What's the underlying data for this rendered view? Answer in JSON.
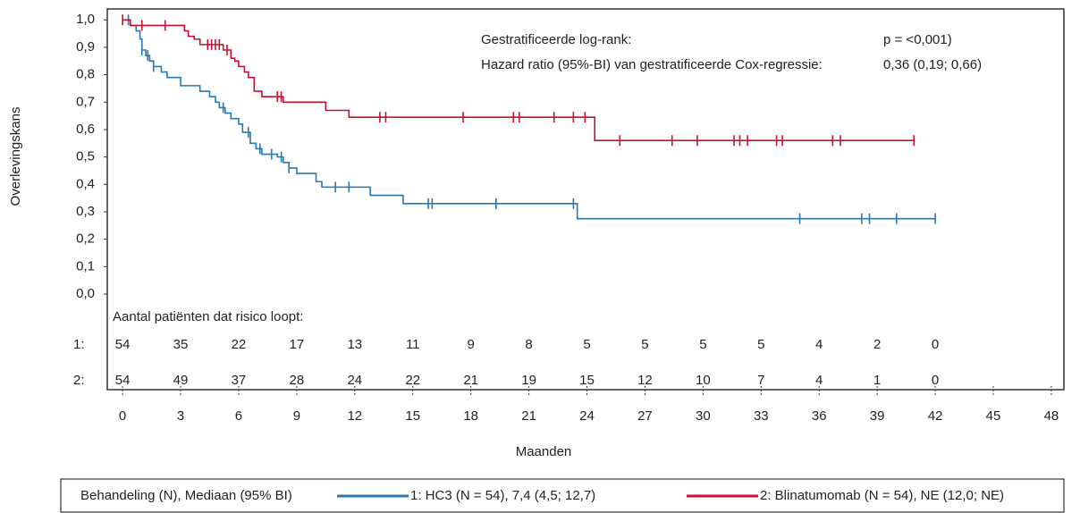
{
  "chart_data": {
    "type": "step",
    "y_label": "Overlevingskans",
    "x_label": "Maanden",
    "xlim": [
      -0.79,
      48.65
    ],
    "ylim": [
      0,
      1.04
    ],
    "xticks": [
      0,
      3,
      6,
      9,
      12,
      15,
      18,
      21,
      24,
      27,
      30,
      33,
      36,
      39,
      42,
      45,
      48
    ],
    "yticks": [
      {
        "value": 0,
        "label": "0,0"
      },
      {
        "value": 0.1,
        "label": "0,1"
      },
      {
        "value": 0.2,
        "label": "0,2"
      },
      {
        "value": 0.3,
        "label": "0,3"
      },
      {
        "value": 0.4,
        "label": "0,4"
      },
      {
        "value": 0.5,
        "label": "0,5"
      },
      {
        "value": 0.6,
        "label": "0,6"
      },
      {
        "value": 0.7,
        "label": "0,7"
      },
      {
        "value": 0.8,
        "label": "0,8"
      },
      {
        "value": 0.9,
        "label": "0,9"
      },
      {
        "value": 1,
        "label": "1,0"
      }
    ],
    "annotations": [
      {
        "text": "Gestratificeerde log-rank:",
        "value_text": "p = <0,001)"
      },
      {
        "text": "Hazard ratio (95%-BI) van gestratificeerde Cox-regressie:",
        "value_text": "0,36 (0,19; 0,66)"
      }
    ],
    "legend_title": "Behandeling (N), Mediaan (95% BI)",
    "series": [
      {
        "name": "1: HC3 (N = 54), 7,4 (4,5; 12,7)",
        "color": "#2a78b0",
        "x": [
          0,
          0.4,
          0.7,
          0.9,
          1.0,
          1.2,
          1.4,
          1.6,
          2.0,
          2.3,
          3.0,
          4.0,
          4.5,
          4.8,
          5.0,
          5.3,
          5.6,
          6.0,
          6.2,
          6.6,
          6.9,
          7.2,
          8.0,
          8.3,
          8.6,
          9.0,
          10.0,
          10.3,
          12.8,
          14.5,
          23.5,
          42.0
        ],
        "values": [
          1.0,
          0.98,
          0.96,
          0.93,
          0.89,
          0.87,
          0.85,
          0.83,
          0.81,
          0.79,
          0.76,
          0.74,
          0.72,
          0.7,
          0.68,
          0.66,
          0.64,
          0.62,
          0.59,
          0.55,
          0.53,
          0.51,
          0.5,
          0.48,
          0.46,
          0.44,
          0.41,
          0.39,
          0.36,
          0.33,
          0.275,
          0.275
        ],
        "censored": [
          0.3,
          1.0,
          1.3,
          1.6,
          5.2,
          6.5,
          7.1,
          7.7,
          8.2,
          8.6,
          11.0,
          11.7,
          15.8,
          16.0,
          19.3,
          23.3,
          35.0,
          38.2,
          38.6,
          40.0,
          42.0
        ]
      },
      {
        "name": "2: Blinatumomab (N = 54), NE (12,0; NE)",
        "color": "#c8102e",
        "x": [
          0,
          0.4,
          3.2,
          3.4,
          3.7,
          4.0,
          5.2,
          5.6,
          5.8,
          6.0,
          6.3,
          6.5,
          6.8,
          7.2,
          8.3,
          10.5,
          11.7,
          24.4,
          40.9
        ],
        "values": [
          1.0,
          0.98,
          0.96,
          0.94,
          0.93,
          0.91,
          0.89,
          0.86,
          0.85,
          0.83,
          0.81,
          0.79,
          0.74,
          0.72,
          0.7,
          0.67,
          0.645,
          0.56,
          0.56
        ],
        "censored": [
          0.0,
          1.0,
          2.2,
          4.4,
          4.6,
          4.8,
          5.0,
          5.4,
          8.0,
          8.2,
          13.3,
          13.6,
          17.6,
          20.2,
          20.5,
          22.3,
          23.3,
          23.9,
          25.7,
          28.4,
          29.7,
          31.6,
          31.9,
          32.3,
          33.8,
          34.1,
          36.7,
          37.1,
          40.9
        ]
      }
    ],
    "risk_table": {
      "title": "Aantal patiënten dat risico loopt:",
      "rows": [
        {
          "label": "1:",
          "color": "#2a78b0",
          "values": [
            54,
            35,
            22,
            17,
            13,
            11,
            9,
            8,
            5,
            5,
            5,
            5,
            4,
            2,
            0
          ]
        },
        {
          "label": "2:",
          "color": "#c8102e",
          "values": [
            54,
            49,
            37,
            28,
            24,
            22,
            21,
            19,
            15,
            12,
            10,
            7,
            4,
            1,
            0
          ]
        }
      ]
    }
  }
}
